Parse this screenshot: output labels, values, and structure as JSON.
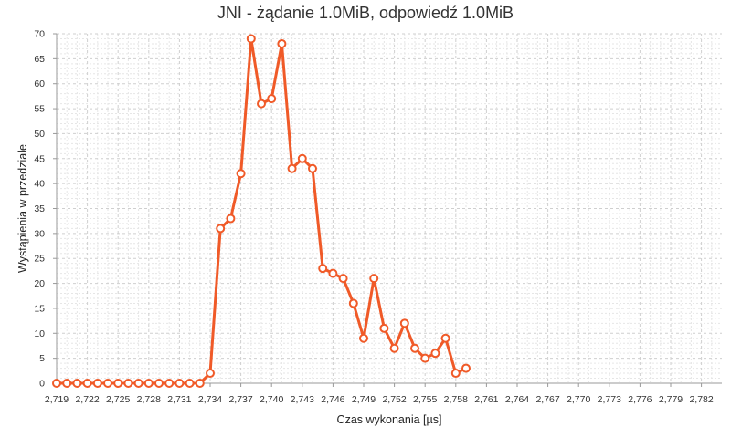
{
  "chart_data": {
    "type": "line",
    "title": "JNI - żądanie 1.0MiB, odpowiedź 1.0MiB",
    "xlabel": "Czas wykonania [µs]",
    "ylabel": "Wystąpienia w przedziale",
    "xlim": [
      2719,
      2784
    ],
    "ylim": [
      0,
      70
    ],
    "grid": true,
    "legend": "none",
    "x_ticks": [
      "2,719",
      "2,722",
      "2,725",
      "2,728",
      "2,731",
      "2,734",
      "2,737",
      "2,740",
      "2,743",
      "2,746",
      "2,749",
      "2,752",
      "2,755",
      "2,758",
      "2,761",
      "2,764",
      "2,767",
      "2,770",
      "2,773",
      "2,776",
      "2,779",
      "2,782"
    ],
    "y_ticks": [
      "0",
      "5",
      "10",
      "15",
      "20",
      "25",
      "30",
      "35",
      "40",
      "45",
      "50",
      "55",
      "60",
      "65",
      "70"
    ],
    "series": [
      {
        "color": "#f05a28",
        "x": [
          2719,
          2720,
          2721,
          2722,
          2723,
          2724,
          2725,
          2726,
          2727,
          2728,
          2729,
          2730,
          2731,
          2732,
          2733,
          2734,
          2735,
          2736,
          2737,
          2738,
          2739,
          2740,
          2741,
          2742,
          2743,
          2744,
          2745,
          2746,
          2747,
          2748,
          2749,
          2750,
          2751,
          2752,
          2753,
          2754,
          2755,
          2756,
          2757,
          2758,
          2759
        ],
        "y": [
          0,
          0,
          0,
          0,
          0,
          0,
          0,
          0,
          0,
          0,
          0,
          0,
          0,
          0,
          0,
          2,
          31,
          33,
          42,
          69,
          56,
          57,
          68,
          43,
          45,
          43,
          23,
          22,
          21,
          16,
          9,
          21,
          11,
          7,
          12,
          7,
          5,
          6,
          9,
          2,
          3
        ]
      }
    ]
  }
}
